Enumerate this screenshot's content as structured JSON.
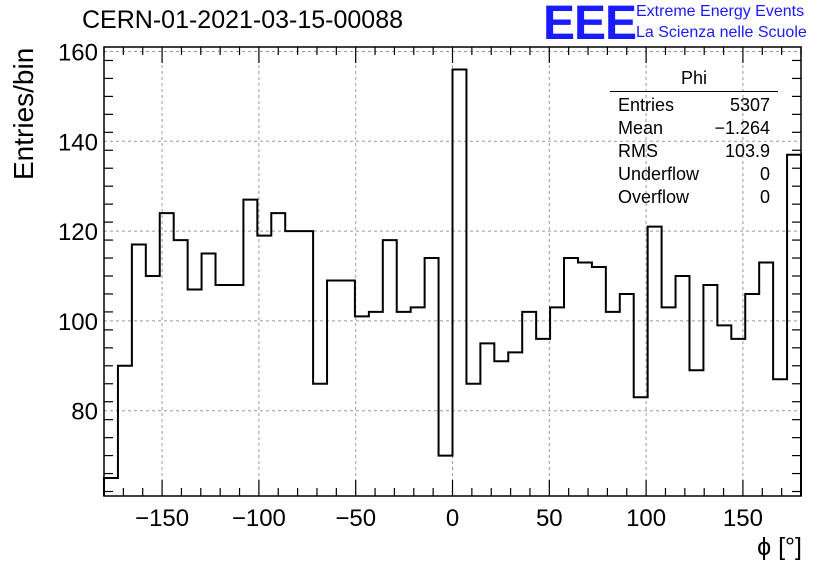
{
  "header": {
    "run_title": "CERN-01-2021-03-15-00088",
    "logo_text": "EEE",
    "logo_line1": "Extreme Energy Events",
    "logo_line2": "La Scienza nelle Scuole"
  },
  "stats_box": {
    "title": "Phi",
    "rows": [
      {
        "label": "Entries",
        "value": "5307"
      },
      {
        "label": "Mean",
        "value": "−1.264"
      },
      {
        "label": "RMS",
        "value": "103.9"
      },
      {
        "label": "Underflow",
        "value": "0"
      },
      {
        "label": "Overflow",
        "value": "0"
      }
    ]
  },
  "chart_data": {
    "type": "bar",
    "style": "step-histogram",
    "xlabel": "ϕ [°]",
    "ylabel": "Entries/bin",
    "xlim": [
      -180,
      180
    ],
    "ylim": [
      61,
      161
    ],
    "bin_edges_start": -180,
    "bin_width": 7.2,
    "values": [
      65,
      90,
      117,
      110,
      124,
      118,
      107,
      115,
      108,
      108,
      127,
      119,
      124,
      120,
      120,
      86,
      109,
      109,
      101,
      102,
      118,
      102,
      103,
      114,
      70,
      156,
      86,
      95,
      91,
      93,
      102,
      96,
      103,
      114,
      113,
      112,
      102,
      106,
      83,
      121,
      103,
      110,
      89,
      108,
      99,
      96,
      106,
      113,
      87,
      137
    ],
    "x_ticks": [
      -150,
      -100,
      -50,
      0,
      50,
      100,
      150
    ],
    "y_ticks": [
      80,
      100,
      120,
      140,
      160
    ],
    "grid": true,
    "line_color": "#000000"
  }
}
